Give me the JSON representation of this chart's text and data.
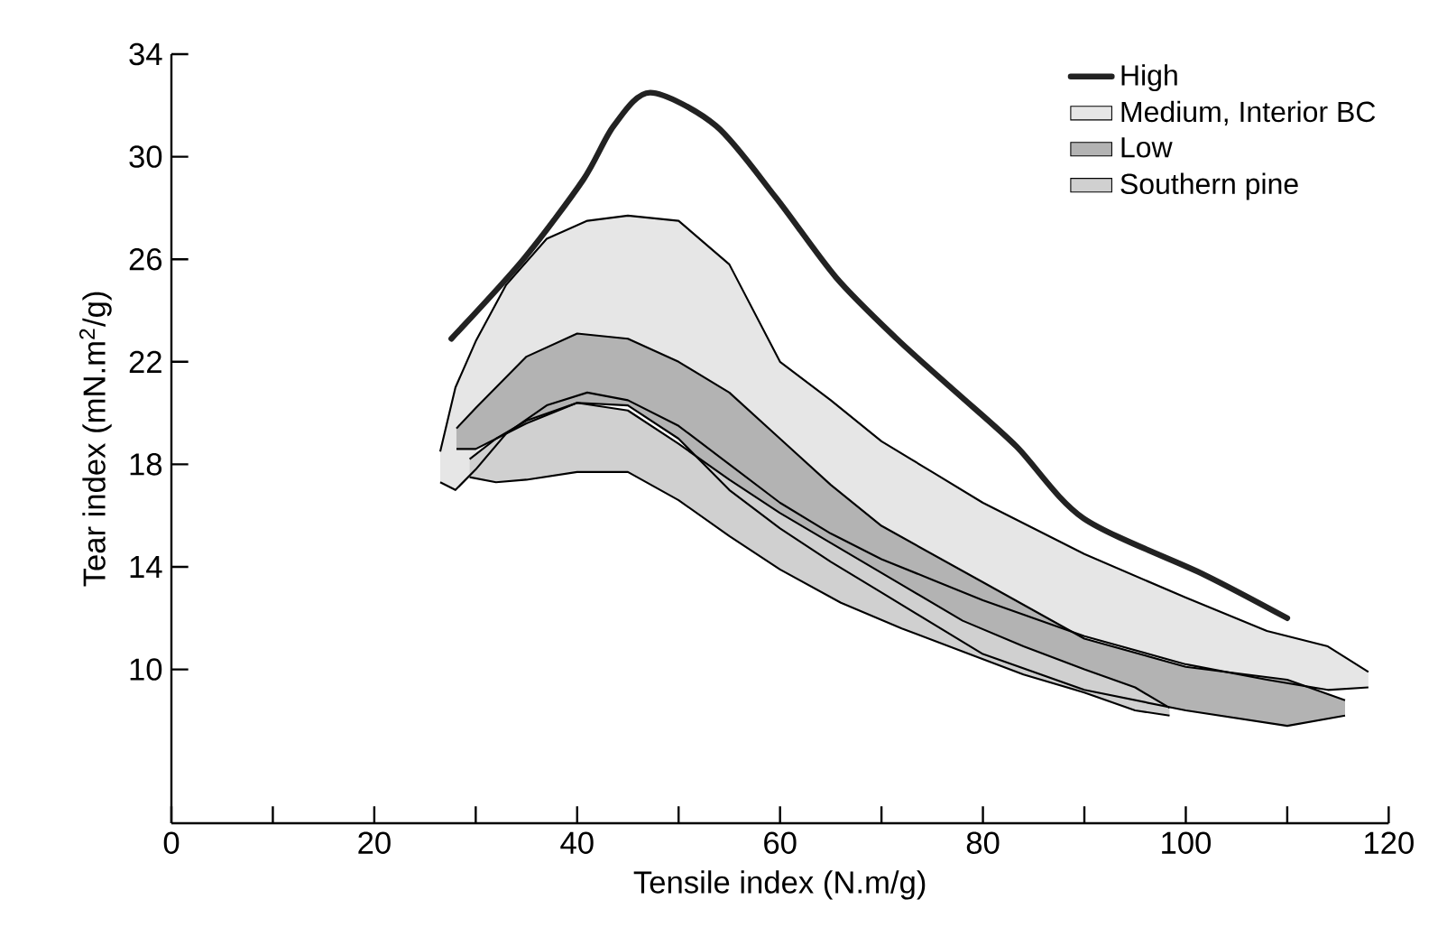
{
  "chart_data": {
    "type": "line",
    "xlabel": "Tensile index (N.m/g)",
    "ylabel": "Tear index (mN.m$^{2}$/g)",
    "xlim": [
      0,
      120
    ],
    "ylim": [
      4,
      34
    ],
    "xticks": [
      0,
      {
        "value": 10,
        "label": null
      },
      20,
      {
        "value": 30,
        "label": null
      },
      40,
      {
        "value": 50,
        "label": null
      },
      60,
      {
        "value": 70,
        "label": null
      },
      80,
      {
        "value": 90,
        "label": null
      },
      100,
      {
        "value": 110,
        "label": null
      },
      120
    ],
    "yticks": [
      10,
      14,
      18,
      22,
      26,
      30,
      34
    ],
    "legend": "top right",
    "series": [
      {
        "name": "High",
        "color": "#222222",
        "x": [
          27.6,
          34.7,
          40.6,
          43.6,
          47.2,
          53.7,
          59.6,
          65.5,
          71.5,
          77.4,
          83.3,
          89.9,
          101.8,
          110.0
        ],
        "values": [
          22.9,
          26.0,
          29.1,
          31.2,
          32.5,
          31.2,
          28.4,
          25.3,
          22.9,
          20.8,
          18.7,
          15.9,
          13.7,
          12.0
        ]
      },
      {
        "name": "Medium, Interior BC",
        "type": "area",
        "color": "#e6e6e6",
        "x": [
          26.5,
          28,
          30,
          33,
          37,
          41,
          45,
          50,
          55,
          60,
          65,
          70,
          75,
          80,
          90,
          100,
          108,
          114,
          118
        ],
        "values": [
          18.5,
          21.0,
          22.8,
          25.0,
          26.8,
          27.5,
          27.7,
          27.5,
          25.8,
          22.0,
          20.5,
          18.9,
          17.7,
          16.5,
          14.5,
          12.8,
          11.5,
          10.9,
          9.9
        ]
      },
      {
        "type": "line",
        "color": "#000000",
        "x": [
          26.5,
          28,
          30,
          33,
          37,
          41,
          45,
          50,
          55,
          60,
          65,
          70,
          75,
          80,
          90,
          100,
          108,
          114,
          118
        ],
        "values": [
          17.3,
          17.0,
          17.8,
          19.2,
          20.3,
          20.8,
          20.5,
          19.5,
          18.0,
          16.5,
          15.3,
          14.3,
          13.5,
          12.7,
          11.3,
          10.2,
          9.6,
          9.2,
          9.3
        ]
      },
      {
        "name": "Low",
        "type": "area",
        "color": "#b3b3b3",
        "x": [
          28.1,
          30,
          35,
          40,
          45,
          50,
          55,
          60,
          65,
          70,
          80,
          90,
          100,
          110,
          115.7
        ],
        "values": [
          19.4,
          20.2,
          22.2,
          23.1,
          22.9,
          22.0,
          20.8,
          19.0,
          17.2,
          15.6,
          13.4,
          11.2,
          10.1,
          9.6,
          8.8
        ]
      },
      {
        "type": "line",
        "color": "#000000",
        "x": [
          28.1,
          30,
          35,
          40,
          45,
          50,
          55,
          60,
          65,
          70,
          80,
          90,
          100,
          110,
          115.7
        ],
        "values": [
          18.6,
          18.6,
          19.6,
          20.4,
          20.3,
          19.0,
          17.0,
          15.5,
          14.2,
          13.0,
          10.6,
          9.2,
          8.4,
          7.8,
          8.2
        ]
      },
      {
        "name": "Southern pine",
        "type": "area",
        "color": "#d0d0d0",
        "x": [
          29.4,
          32,
          35,
          40,
          45,
          50,
          55,
          60,
          66,
          72,
          78,
          84,
          90,
          95,
          98.4
        ],
        "values": [
          18.2,
          19.0,
          19.7,
          20.4,
          20.1,
          18.8,
          17.4,
          16.1,
          14.7,
          13.3,
          11.9,
          10.9,
          10.0,
          9.3,
          8.5
        ]
      },
      {
        "type": "line",
        "color": "#000000",
        "x": [
          29.4,
          32,
          35,
          40,
          45,
          50,
          55,
          60,
          66,
          72,
          78,
          84,
          90,
          95,
          98.4
        ],
        "values": [
          17.5,
          17.3,
          17.4,
          17.7,
          17.7,
          16.6,
          15.2,
          13.9,
          12.6,
          11.6,
          10.7,
          9.8,
          9.1,
          8.4,
          8.2
        ]
      }
    ]
  }
}
